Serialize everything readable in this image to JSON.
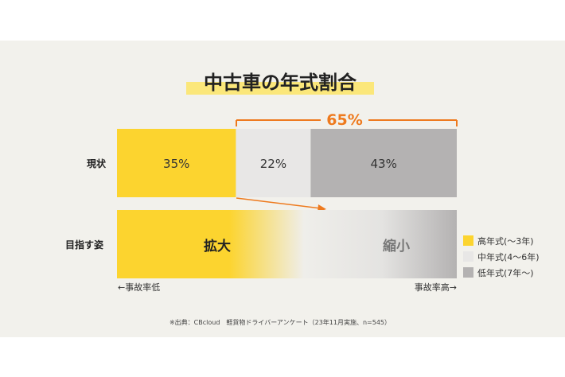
{
  "colors": {
    "high_year": "#fcd42f",
    "mid_year": "#e8e7e6",
    "low_year": "#b4b2b2",
    "accent": "#ee7a1e",
    "highlight": "#fbe77a"
  },
  "chart_data": {
    "type": "bar",
    "orientation": "horizontal-stacked",
    "title": "中古車の年式割合",
    "rows": [
      {
        "label": "現状",
        "segments": [
          {
            "name": "高年式(〜3年)",
            "value": 35,
            "label": "35%"
          },
          {
            "name": "中年式(4〜6年)",
            "value": 22,
            "label": "22%"
          },
          {
            "name": "低年式(7年〜)",
            "value": 43,
            "label": "43%"
          }
        ]
      },
      {
        "label": "目指す姿",
        "left_text": "拡大",
        "right_text": "縮小"
      }
    ],
    "bracket": {
      "label": "65%",
      "span": [
        "中年式(4〜6年)",
        "低年式(7年〜)"
      ]
    },
    "legend": [
      "高年式(〜3年)",
      "中年式(4〜6年)",
      "低年式(7年〜)"
    ],
    "legend_position": "right",
    "axis_left": "←事故率低",
    "axis_right": "事故率高→",
    "source": "※出典：CBcloud　軽貨物ドライバーアンケート（23年11月実施、n=545）"
  }
}
